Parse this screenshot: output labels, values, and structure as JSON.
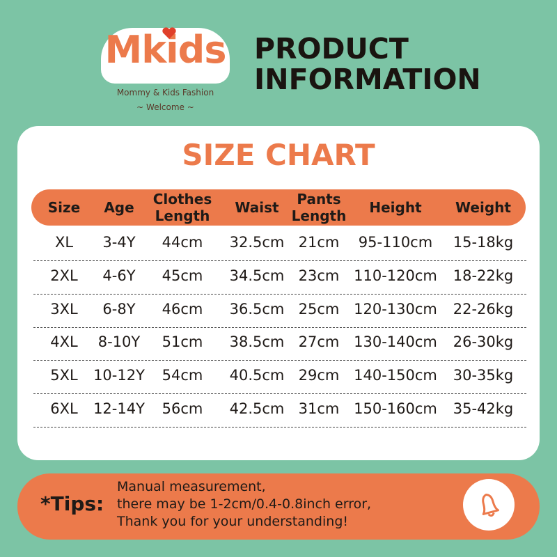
{
  "logo": {
    "name": "Mkids",
    "tagline": "Mommy & Kids Fashion",
    "welcome": "~ Welcome ~"
  },
  "header": {
    "title_lines": [
      "PRODUCT",
      "INFORMATION"
    ]
  },
  "card": {
    "title": "SIZE CHART"
  },
  "table": {
    "columns": [
      "Size",
      "Age",
      "Clothes Length",
      "Waist",
      "Pants Length",
      "Height",
      "Weight"
    ],
    "rows": [
      [
        "XL",
        "3-4Y",
        "44cm",
        "32.5cm",
        "21cm",
        "95-110cm",
        "15-18kg"
      ],
      [
        "2XL",
        "4-6Y",
        "45cm",
        "34.5cm",
        "23cm",
        "110-120cm",
        "18-22kg"
      ],
      [
        "3XL",
        "6-8Y",
        "46cm",
        "36.5cm",
        "25cm",
        "120-130cm",
        "22-26kg"
      ],
      [
        "4XL",
        "8-10Y",
        "51cm",
        "38.5cm",
        "27cm",
        "130-140cm",
        "26-30kg"
      ],
      [
        "5XL",
        "10-12Y",
        "54cm",
        "40.5cm",
        "29cm",
        "140-150cm",
        "30-35kg"
      ],
      [
        "6XL",
        "12-14Y",
        "56cm",
        "42.5cm",
        "31cm",
        "150-160cm",
        "35-42kg"
      ]
    ]
  },
  "tips": {
    "label": "*Tips:",
    "lines": [
      "Manual measurement,",
      "there may be 1-2cm/0.4-0.8inch error,",
      "Thank you for your understanding!"
    ]
  }
}
